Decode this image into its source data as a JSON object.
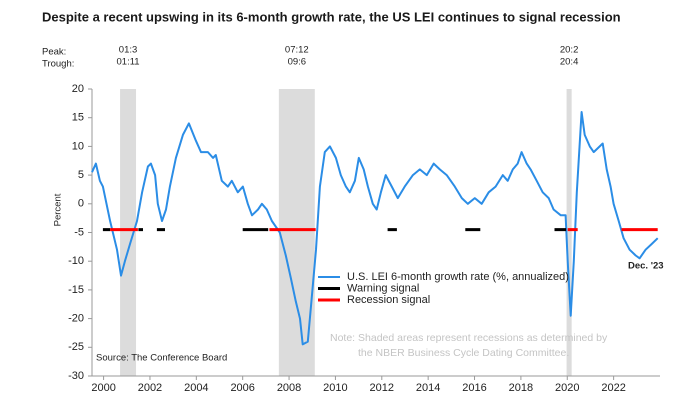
{
  "chart_data": {
    "type": "line",
    "title": "Despite a recent upswing in its 6-month growth rate, the US LEI continues to signal recession",
    "y_label": "Percent",
    "source": "Source: The Conference Board",
    "note": [
      "Note: Shaded areas represent recessions as determined by",
      "the NBER Business Cycle Dating Committee."
    ],
    "annotation": "Dec. '23",
    "peak_label": "Peak:",
    "trough_label": "Trough:",
    "recessions": [
      {
        "start": 2000.71,
        "end": 2001.4,
        "peak": "01:3",
        "trough": "01:11"
      },
      {
        "start": 2007.56,
        "end": 2009.11,
        "peak": "07:12",
        "trough": "09:6"
      },
      {
        "start": 2019.97,
        "end": 2020.19,
        "peak": "20:2",
        "trough": "20:4"
      }
    ],
    "recession_color": "#dcdcdc",
    "xlim": [
      1999.5,
      2024
    ],
    "xticks": [
      2000,
      2002,
      2004,
      2006,
      2008,
      2010,
      2012,
      2014,
      2016,
      2018,
      2020,
      2022
    ],
    "ylim": [
      -30,
      20
    ],
    "yticks": [
      -30,
      -25,
      -20,
      -15,
      -10,
      -5,
      0,
      5,
      10,
      15,
      20
    ],
    "grid": false,
    "series": [
      {
        "name": "U.S. LEI 6-month growth rate (%, annualized)",
        "color": "#2b8de6",
        "x": [
          1999.5,
          1999.67,
          1999.84,
          1999.97,
          2000.28,
          2000.58,
          2000.75,
          2000.92,
          2001.14,
          2001.44,
          2001.66,
          2001.91,
          2002.04,
          2002.22,
          2002.34,
          2002.52,
          2002.69,
          2002.86,
          2003.12,
          2003.42,
          2003.68,
          2003.98,
          2004.2,
          2004.5,
          2004.72,
          2004.84,
          2005.1,
          2005.36,
          2005.53,
          2005.79,
          2006.01,
          2006.22,
          2006.4,
          2006.66,
          2006.83,
          2007.04,
          2007.26,
          2007.6,
          2007.86,
          2008.08,
          2008.29,
          2008.47,
          2008.59,
          2008.81,
          2008.94,
          2009.16,
          2009.33,
          2009.54,
          2009.76,
          2010.02,
          2010.23,
          2010.45,
          2010.62,
          2010.84,
          2011.01,
          2011.22,
          2011.4,
          2011.61,
          2011.78,
          2011.96,
          2012.17,
          2012.43,
          2012.69,
          2012.99,
          2013.34,
          2013.64,
          2013.94,
          2014.24,
          2014.5,
          2014.8,
          2015.15,
          2015.45,
          2015.71,
          2016.01,
          2016.31,
          2016.61,
          2016.91,
          2017.22,
          2017.43,
          2017.65,
          2017.86,
          2018.03,
          2018.25,
          2018.42,
          2018.68,
          2018.94,
          2019.2,
          2019.41,
          2019.72,
          2019.93,
          2020.02,
          2020.15,
          2020.28,
          2020.41,
          2020.62,
          2020.75,
          2020.97,
          2021.14,
          2021.4,
          2021.53,
          2021.7,
          2021.87,
          2022.0,
          2022.22,
          2022.43,
          2022.69,
          2022.95,
          2023.12,
          2023.38,
          2023.64,
          2023.9
        ],
        "values": [
          5.5,
          7,
          4,
          3,
          -3,
          -8,
          -12.5,
          -10,
          -7,
          -3,
          2,
          6.5,
          7,
          5,
          0,
          -3,
          -1,
          3,
          8,
          12,
          14,
          11,
          9,
          9,
          8,
          8.5,
          4,
          3,
          4,
          2,
          3,
          0,
          -2,
          -1,
          0,
          -1,
          -3,
          -5,
          -9,
          -13,
          -17,
          -20,
          -24.5,
          -24,
          -18,
          -8,
          3,
          9,
          10,
          8,
          5,
          3,
          2,
          4,
          8,
          6,
          3,
          0,
          -1,
          2,
          5,
          3,
          1,
          3,
          5,
          6,
          5,
          7,
          6,
          5,
          3,
          1,
          0,
          1,
          0,
          2,
          3,
          5,
          4,
          6,
          7,
          9,
          7,
          6,
          4,
          2,
          1,
          -1,
          -2,
          -2,
          -10,
          -19.5,
          -10,
          2,
          16,
          12,
          10,
          9,
          10,
          10.5,
          6,
          3,
          0,
          -3,
          -6,
          -8,
          -9,
          -9.5,
          -8,
          -7,
          -6
        ]
      },
      {
        "name": "Warning signal",
        "color": "#000000",
        "x": [
          1999.97,
          2000.28,
          2000.9,
          2001.5,
          2001.7,
          2002.0,
          2002.3,
          2002.65,
          2004.0,
          2006.0,
          2007.1,
          2009.7,
          2012.25,
          2012.65,
          2014.0,
          2015.6,
          2016.25,
          2018.0,
          2019.45,
          2019.95
        ],
        "values": [
          -4.5,
          -4.5,
          null,
          -4.5,
          -4.5,
          null,
          -4.5,
          -4.5,
          null,
          -4.5,
          -4.5,
          null,
          -4.5,
          -4.5,
          null,
          -4.5,
          -4.5,
          null,
          -4.5,
          -4.5
        ]
      },
      {
        "name": "Recession signal",
        "color": "#ff0000",
        "x": [
          2000.28,
          2001.48,
          2004.0,
          2007.15,
          2009.15,
          2015.0,
          2020.02,
          2020.45,
          2021.5,
          2022.34,
          2023.9
        ],
        "values": [
          -4.5,
          -4.5,
          null,
          -4.5,
          -4.5,
          null,
          -4.5,
          -4.5,
          null,
          -4.5,
          -4.5
        ]
      }
    ]
  }
}
